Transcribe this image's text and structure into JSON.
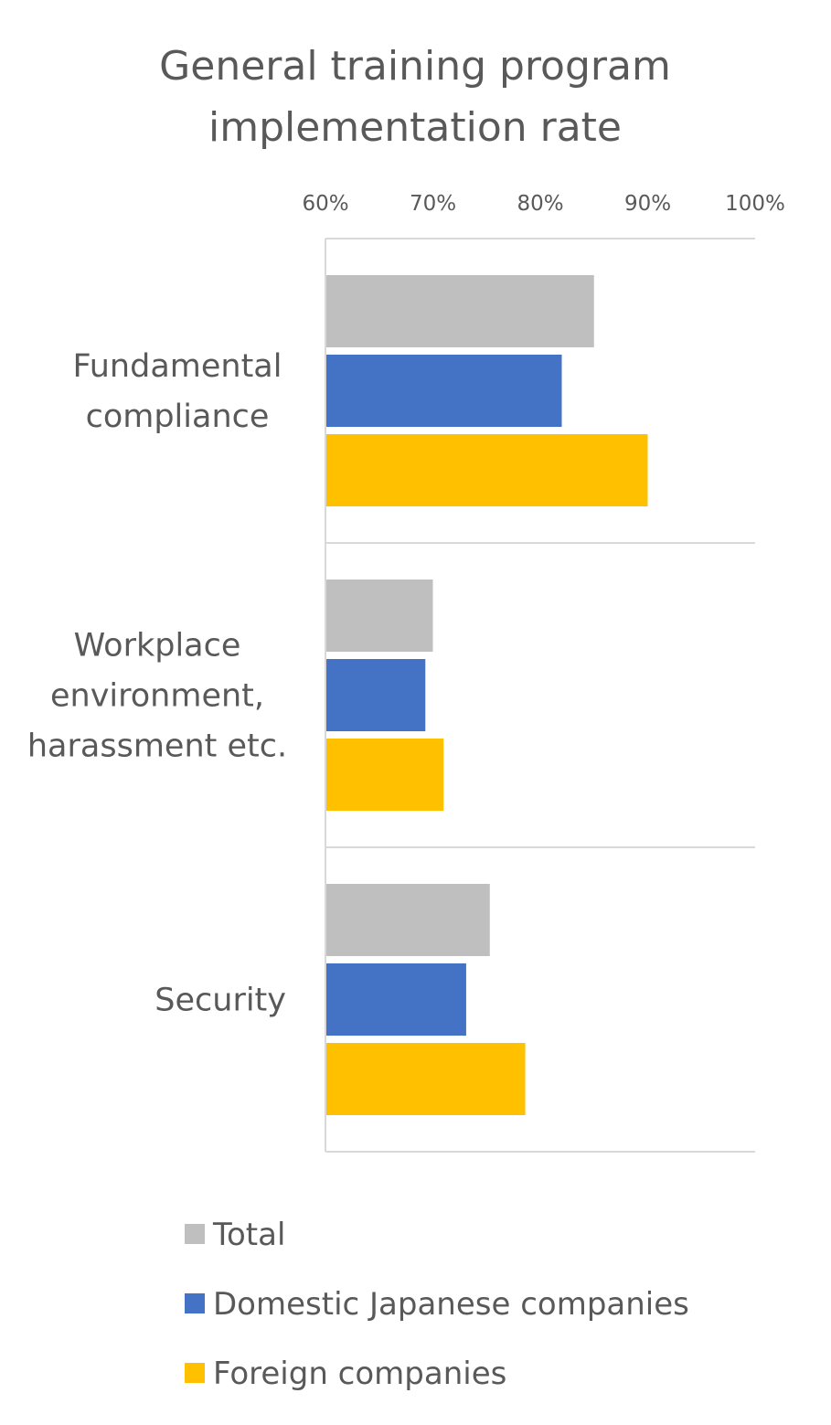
{
  "chart_data": {
    "type": "bar",
    "orientation": "horizontal",
    "title": [
      "General training program",
      "implementation rate"
    ],
    "categories": [
      [
        "Fundamental",
        "compliance"
      ],
      [
        "Workplace",
        "environment,",
        "harassment etc."
      ],
      [
        "Security"
      ]
    ],
    "series": [
      {
        "name": "Total",
        "color": "#bfbfbf",
        "values": [
          85,
          70,
          75.3
        ]
      },
      {
        "name": "Domestic Japanese companies",
        "color": "#4472c4",
        "values": [
          82,
          69.3,
          73.1
        ]
      },
      {
        "name": "Foreign companies",
        "color": "#ffc000",
        "values": [
          90,
          71,
          78.6
        ]
      }
    ],
    "xlim": [
      60,
      100
    ],
    "xticks": [
      "60%",
      "70%",
      "80%",
      "90%",
      "100%"
    ],
    "xtick_values": [
      60,
      70,
      80,
      90,
      100
    ],
    "axis_position": "top",
    "grid": "category-separators",
    "legend_position": "bottom",
    "axis_color": "#d9d9d9",
    "text_color": "#595959"
  }
}
